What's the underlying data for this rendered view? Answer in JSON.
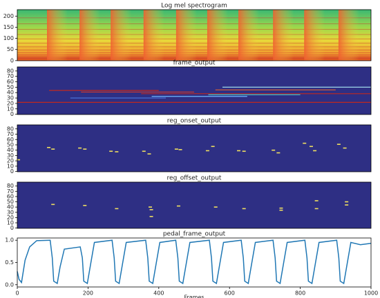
{
  "chart_data": [
    {
      "type": "spectrogram",
      "title": "Log mel spectrogram",
      "xlim": [
        0,
        1000
      ],
      "ylim": [
        -0.5,
        229
      ],
      "yticks": [
        0,
        50,
        100,
        150,
        200
      ],
      "onsets": [
        84,
        176,
        264,
        357,
        449,
        537,
        625,
        723,
        811,
        908
      ]
    },
    {
      "type": "frames",
      "title": "frame_output",
      "xlim": [
        0,
        1000
      ],
      "ylim": [
        -0.5,
        87.5
      ],
      "yticks": [
        0,
        10,
        20,
        30,
        40,
        50,
        60,
        70,
        80
      ],
      "segments": [
        [
          0,
          1000,
          22,
          "#c0281e"
        ],
        [
          90,
          400,
          44,
          "#c0281e"
        ],
        [
          350,
          1000,
          38,
          "#c0281e"
        ],
        [
          180,
          500,
          41,
          "#d23a2a"
        ],
        [
          560,
          900,
          45,
          "#e06030"
        ],
        [
          580,
          1000,
          50,
          "#9fd8e8"
        ],
        [
          380,
          650,
          33,
          "#6fb8ff"
        ],
        [
          150,
          420,
          30,
          "#4a78e0"
        ],
        [
          540,
          800,
          36,
          "#40c0c8"
        ]
      ]
    },
    {
      "type": "points",
      "title": "reg_onset_output",
      "xlim": [
        0,
        1000
      ],
      "ylim": [
        -0.5,
        87.5
      ],
      "yticks": [
        0,
        10,
        20,
        30,
        40,
        50,
        60,
        70,
        80
      ],
      "points": [
        [
          2,
          22
        ],
        [
          88,
          45
        ],
        [
          100,
          42
        ],
        [
          176,
          44
        ],
        [
          190,
          42
        ],
        [
          264,
          38
        ],
        [
          280,
          37
        ],
        [
          357,
          38
        ],
        [
          372,
          33
        ],
        [
          449,
          42
        ],
        [
          460,
          41
        ],
        [
          537,
          39
        ],
        [
          552,
          47
        ],
        [
          625,
          39
        ],
        [
          640,
          38
        ],
        [
          723,
          40
        ],
        [
          737,
          35
        ],
        [
          811,
          53
        ],
        [
          830,
          47
        ],
        [
          840,
          39
        ],
        [
          908,
          51
        ],
        [
          925,
          44
        ]
      ]
    },
    {
      "type": "points",
      "title": "reg_offset_output",
      "xlim": [
        0,
        1000
      ],
      "ylim": [
        -0.5,
        87.5
      ],
      "yticks": [
        0,
        10,
        20,
        30,
        40,
        50,
        60,
        70,
        80
      ],
      "points": [
        [
          100,
          45
        ],
        [
          190,
          43
        ],
        [
          280,
          37
        ],
        [
          375,
          40
        ],
        [
          378,
          35
        ],
        [
          378,
          22
        ],
        [
          455,
          42
        ],
        [
          560,
          40
        ],
        [
          640,
          37
        ],
        [
          745,
          38
        ],
        [
          745,
          34
        ],
        [
          845,
          52
        ],
        [
          845,
          37
        ],
        [
          930,
          50
        ],
        [
          930,
          44
        ]
      ]
    },
    {
      "type": "line",
      "title": "pedal_frame_output",
      "color": "#1f77b4",
      "xlim": [
        0,
        1000
      ],
      "ylim": [
        -0.05,
        1.05
      ],
      "yticks": [
        {
          "value": 0,
          "label": "0.0"
        },
        {
          "value": 0.5,
          "label": "0.5"
        },
        {
          "value": 1,
          "label": "1.0"
        }
      ],
      "xticks": [
        0,
        200,
        400,
        600,
        800,
        1000
      ],
      "xlabel": "Frames",
      "x": [
        0,
        5,
        12,
        22,
        35,
        55,
        93,
        99,
        103,
        113,
        121,
        133,
        178,
        184,
        188,
        198,
        206,
        218,
        268,
        274,
        278,
        288,
        296,
        308,
        363,
        369,
        373,
        383,
        391,
        403,
        448,
        454,
        458,
        468,
        476,
        488,
        543,
        549,
        553,
        563,
        571,
        583,
        633,
        639,
        643,
        653,
        661,
        673,
        723,
        729,
        733,
        743,
        751,
        763,
        813,
        819,
        823,
        833,
        841,
        853,
        903,
        909,
        913,
        923,
        931,
        943,
        970,
        1000
      ],
      "values": [
        0.3,
        0.12,
        0.05,
        0.55,
        0.85,
        0.99,
        1.0,
        0.6,
        0.08,
        0.03,
        0.4,
        0.8,
        0.85,
        0.6,
        0.08,
        0.03,
        0.4,
        0.95,
        1.0,
        0.6,
        0.08,
        0.03,
        0.4,
        0.95,
        1.0,
        0.6,
        0.08,
        0.03,
        0.4,
        0.95,
        1.0,
        0.6,
        0.08,
        0.03,
        0.4,
        0.95,
        1.0,
        0.6,
        0.08,
        0.03,
        0.4,
        0.95,
        1.0,
        0.6,
        0.08,
        0.03,
        0.4,
        0.95,
        1.0,
        0.6,
        0.08,
        0.03,
        0.4,
        0.95,
        1.0,
        0.6,
        0.08,
        0.03,
        0.4,
        0.95,
        1.0,
        0.6,
        0.08,
        0.03,
        0.4,
        0.95,
        0.9,
        0.93
      ]
    }
  ]
}
